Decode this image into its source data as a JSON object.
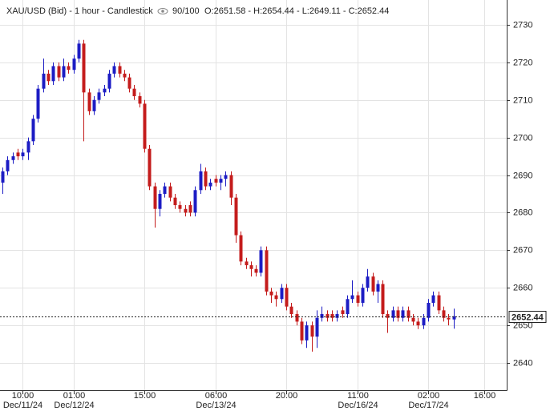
{
  "chart_data": {
    "type": "candlestick",
    "title": "XAU/USD (Bid) - 1 hour - Candlestick",
    "counter": "90/100",
    "ohlc_text": "O:2651.58 - H:2654.44 - L:2649.11 - C:2652.44",
    "open": [
      2688,
      2691,
      2694,
      2696,
      2695,
      2696,
      2699,
      2705,
      2713,
      2717,
      2715,
      2719,
      2716,
      2719,
      2718,
      2721,
      2725,
      2712,
      2707,
      2710,
      2712,
      2713,
      2717,
      2719,
      2717,
      2716,
      2713,
      2711,
      2709,
      2697,
      2687,
      2681,
      2685,
      2687,
      2684,
      2682,
      2681,
      2682,
      2680,
      2686,
      2691,
      2687,
      2689,
      2688,
      2689,
      2690,
      2684,
      2674,
      2667,
      2666,
      2665,
      2664,
      2670,
      2659,
      2658,
      2657,
      2660,
      2655,
      2653,
      2651,
      2646,
      2650,
      2647,
      2652,
      2653,
      2653,
      2652,
      2654,
      2653,
      2657,
      2658,
      2656,
      2660,
      2663,
      2659,
      2661,
      2653,
      2652,
      2654,
      2652,
      2654,
      2652,
      2651,
      2650,
      2652,
      2656,
      2658,
      2654,
      2652,
      2651.58
    ],
    "high": [
      2692,
      2695,
      2696,
      2697,
      2697,
      2700,
      2706,
      2714,
      2721,
      2718,
      2720,
      2720,
      2721,
      2720,
      2722,
      2726,
      2726,
      2713,
      2711,
      2713,
      2714,
      2718,
      2720,
      2720,
      2718,
      2717,
      2714,
      2712,
      2710,
      2698,
      2688,
      2686,
      2688,
      2688,
      2685,
      2683,
      2682,
      2683,
      2687,
      2693,
      2692,
      2689,
      2690,
      2690,
      2691,
      2691,
      2685,
      2675,
      2668,
      2667,
      2666,
      2671,
      2671,
      2660,
      2659,
      2661,
      2661,
      2656,
      2654,
      2652,
      2651,
      2651,
      2654,
      2655,
      2654,
      2654,
      2654,
      2655,
      2658,
      2662,
      2659,
      2661,
      2665,
      2664,
      2662,
      2662,
      2654,
      2655,
      2655,
      2655,
      2655,
      2653,
      2652,
      2653,
      2657,
      2659,
      2659,
      2655,
      2653,
      2654.44
    ],
    "low": [
      2685,
      2690,
      2693,
      2694,
      2694,
      2694,
      2698,
      2704,
      2712,
      2714,
      2714,
      2715,
      2715,
      2717,
      2717,
      2720,
      2699,
      2706,
      2706,
      2709,
      2711,
      2712,
      2716,
      2716,
      2715,
      2712,
      2710,
      2708,
      2696,
      2686,
      2676,
      2679,
      2684,
      2683,
      2681,
      2680,
      2679,
      2679,
      2679,
      2685,
      2686,
      2686,
      2687,
      2686,
      2687,
      2682,
      2672,
      2666,
      2665,
      2663,
      2663,
      2663,
      2658,
      2656,
      2655,
      2656,
      2654,
      2652,
      2650,
      2645,
      2644,
      2643,
      2644,
      2651,
      2651,
      2651,
      2651,
      2652,
      2652,
      2656,
      2655,
      2655,
      2659,
      2658,
      2656,
      2652,
      2648,
      2651,
      2651,
      2651,
      2651,
      2650,
      2649,
      2649,
      2651,
      2655,
      2653,
      2651,
      2650,
      2649.11
    ],
    "close": [
      2691,
      2694,
      2695,
      2695,
      2696,
      2699,
      2705,
      2713,
      2717,
      2715,
      2719,
      2716,
      2719,
      2718,
      2721,
      2725,
      2712,
      2707,
      2710,
      2712,
      2713,
      2717,
      2719,
      2717,
      2716,
      2713,
      2711,
      2709,
      2697,
      2687,
      2681,
      2685,
      2687,
      2684,
      2682,
      2681,
      2680,
      2680,
      2686,
      2691,
      2687,
      2688,
      2688,
      2689,
      2690,
      2684,
      2674,
      2667,
      2666,
      2665,
      2664,
      2670,
      2659,
      2658,
      2657,
      2660,
      2655,
      2653,
      2651,
      2646,
      2650,
      2647,
      2652,
      2653,
      2652,
      2652,
      2653,
      2653,
      2657,
      2658,
      2656,
      2660,
      2663,
      2659,
      2661,
      2653,
      2652,
      2654,
      2652,
      2654,
      2652,
      2651,
      2650,
      2652,
      2656,
      2658,
      2654,
      2652,
      2651.58,
      2652.44
    ],
    "up_color": "#1c1cc4",
    "down_color": "#c41c1c",
    "last_price": 2652.44,
    "xlim": [
      -0.5,
      99.5
    ],
    "xticks": [
      {
        "value": 4,
        "label": "10:00",
        "date": "Dec/11/24"
      },
      {
        "value": 14,
        "label": "01:00",
        "date": "Dec/12/24"
      },
      {
        "value": 28,
        "label": "15:00"
      },
      {
        "value": 42,
        "label": "06:00",
        "date": "Dec/13/24"
      },
      {
        "value": 56,
        "label": "20:00"
      },
      {
        "value": 70,
        "label": "11:00",
        "date": "Dec/16/24"
      },
      {
        "value": 84,
        "label": "02:00",
        "date": "Dec/17/24"
      },
      {
        "value": 95,
        "label": "16:00"
      }
    ],
    "ylim": [
      2632.75,
      2736.6
    ],
    "yticks": [
      2640,
      2650,
      2660,
      2670,
      2680,
      2690,
      2700,
      2710,
      2720,
      2730
    ],
    "grid": true
  }
}
